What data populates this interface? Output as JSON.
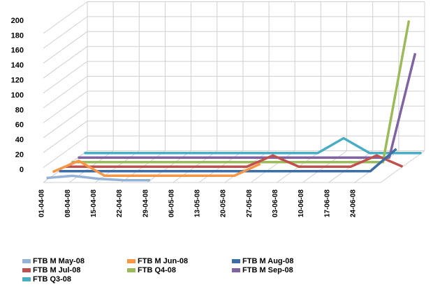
{
  "chart_data": {
    "type": "line3d",
    "categories": [
      "01-04-08",
      "08-04-08",
      "15-04-08",
      "22-04-08",
      "29-04-08",
      "06-05-08",
      "13-05-08",
      "20-05-08",
      "27-05-08",
      "03-06-08",
      "10-06-08",
      "17-06-08",
      "24-06-08",
      null
    ],
    "ylim": [
      0,
      200
    ],
    "yticks": [
      0,
      20,
      40,
      60,
      80,
      100,
      120,
      140,
      160,
      180,
      200
    ],
    "grid": true,
    "series": [
      {
        "name": "FTB M May-08",
        "color": "#95b3d7",
        "values": [
          3,
          6,
          2,
          0,
          0,
          null,
          null,
          null,
          null,
          null,
          null,
          null,
          null,
          null
        ]
      },
      {
        "name": "FTB M Jun-08",
        "color": "#f79646",
        "values": [
          5,
          20,
          0,
          0,
          0,
          0,
          0,
          0,
          16,
          null,
          null,
          null,
          null,
          null
        ]
      },
      {
        "name": "FTB M Aug-08",
        "color": "#3a6ea5",
        "values": [
          0,
          0,
          0,
          0,
          0,
          0,
          0,
          0,
          0,
          0,
          0,
          0,
          0,
          30
        ]
      },
      {
        "name": "FTB M Jul-08",
        "color": "#c0504d",
        "values": [
          0,
          0,
          0,
          0,
          0,
          0,
          0,
          0,
          15,
          0,
          0,
          0,
          15,
          0
        ]
      },
      {
        "name": "FTB Q4-08",
        "color": "#9bbb59",
        "values": [
          0,
          0,
          0,
          0,
          0,
          0,
          0,
          0,
          0,
          0,
          0,
          0,
          0,
          190
        ]
      },
      {
        "name": "FTB M Sep-08",
        "color": "#8064a2",
        "values": [
          0,
          0,
          0,
          0,
          0,
          0,
          0,
          0,
          0,
          0,
          0,
          0,
          0,
          140
        ]
      },
      {
        "name": "FTB Q3-08",
        "color": "#4bacc6",
        "values": [
          0,
          0,
          0,
          0,
          0,
          0,
          0,
          0,
          0,
          0,
          20,
          0,
          0,
          0
        ]
      }
    ]
  }
}
